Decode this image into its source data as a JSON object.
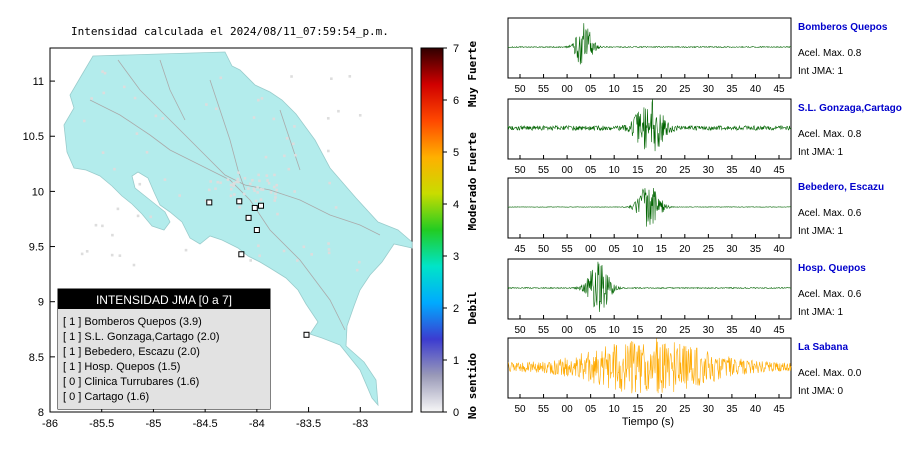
{
  "map": {
    "title": "Intensidad calculada el 2024/08/11_07:59:54_p.m.",
    "x_ticks": [
      "-86",
      "-85.5",
      "-85",
      "-84.5",
      "-84",
      "-83.5",
      "-83"
    ],
    "y_ticks": [
      "11",
      "10.5",
      "10",
      "9.5",
      "9",
      "8.5",
      "8"
    ],
    "xlim": [
      -86,
      -82.5
    ],
    "ylim": [
      8,
      11.3
    ],
    "land_color": "#b3ecec",
    "stations": [
      {
        "lon": -84.46,
        "lat": 9.9
      },
      {
        "lon": -84.17,
        "lat": 9.91
      },
      {
        "lon": -84.02,
        "lat": 9.85
      },
      {
        "lon": -83.96,
        "lat": 9.87
      },
      {
        "lon": -84.08,
        "lat": 9.76
      },
      {
        "lon": -84.0,
        "lat": 9.65
      },
      {
        "lon": -84.15,
        "lat": 9.43
      },
      {
        "lon": -83.52,
        "lat": 8.7
      }
    ]
  },
  "colorbar": {
    "ticks": [
      "0",
      "1",
      "2",
      "3",
      "4",
      "5",
      "6",
      "7"
    ],
    "labels": [
      {
        "text": "No sentido",
        "level": 0.5
      },
      {
        "text": "Debil",
        "level": 2.0
      },
      {
        "text": "Moderado",
        "level": 4.0
      },
      {
        "text": "Fuerte",
        "level": 5.0
      },
      {
        "text": "Muy Fuerte",
        "level": 6.5
      }
    ],
    "colors": [
      "#f7f7f7",
      "#9a9ab8",
      "#3c3cd0",
      "#00aaff",
      "#00e4c8",
      "#22cc22",
      "#c8dc00",
      "#ffb000",
      "#ff4800",
      "#d00000",
      "#300000"
    ]
  },
  "legend": {
    "title": "INTENSIDAD JMA [0 a 7]",
    "items": [
      "[ 1 ]  Bomberos Quepos (3.9)",
      "[ 1 ]  S.L. Gonzaga,Cartago (2.0)",
      "[ 1 ]  Bebedero, Escazu (2.0)",
      "[ 1 ]  Hosp. Quepos (1.5)",
      "[ 0 ]  Clinica Turrubares (1.6)",
      "[ 0 ]  Cartago (1.6)"
    ]
  },
  "chart_data": {
    "type": "line",
    "xlabel": "Tiempo (s)",
    "series": [
      {
        "name": "Bomberos Quepos",
        "accel": "Acel. Max. 0.8",
        "jma": "Int JMA: 1",
        "ticks": [
          "50",
          "55",
          "00",
          "05",
          "10",
          "15",
          "20",
          "25",
          "30",
          "35",
          "40",
          "45"
        ],
        "color": "#006400",
        "peak": 0.9,
        "center": 0.27,
        "width": 0.03,
        "noise": 0.02
      },
      {
        "name": "S.L. Gonzaga,Cartago",
        "accel": "Acel. Max. 0.8",
        "jma": "Int JMA: 1",
        "ticks": [
          "50",
          "55",
          "00",
          "05",
          "10",
          "15",
          "20",
          "25",
          "30",
          "35",
          "40",
          "45"
        ],
        "color": "#006400",
        "peak": 1.0,
        "center": 0.5,
        "width": 0.05,
        "noise": 0.08
      },
      {
        "name": "Bebedero, Escazu",
        "accel": "Acel. Max. 0.6",
        "jma": "Int JMA: 1",
        "ticks": [
          "45",
          "50",
          "55",
          "00",
          "05",
          "10",
          "15",
          "20",
          "25",
          "30",
          "35",
          "40"
        ],
        "color": "#006400",
        "peak": 0.9,
        "center": 0.5,
        "width": 0.04,
        "noise": 0.01
      },
      {
        "name": "Hosp. Quepos",
        "accel": "Acel. Max. 0.6",
        "jma": "Int JMA: 1",
        "ticks": [
          "50",
          "55",
          "00",
          "05",
          "10",
          "15",
          "20",
          "25",
          "30",
          "35",
          "40",
          "45"
        ],
        "color": "#006400",
        "peak": 0.95,
        "center": 0.32,
        "width": 0.04,
        "noise": 0.02
      },
      {
        "name": "La Sabana",
        "accel": "Acel. Max. 0.0",
        "jma": "Int JMA: 0",
        "ticks": [
          "50",
          "55",
          "00",
          "05",
          "10",
          "15",
          "20",
          "25",
          "30",
          "35",
          "40",
          "45"
        ],
        "color": "#ffaa00",
        "peak": 0.9,
        "center": 0.5,
        "width": 0.25,
        "noise": 0.15
      }
    ]
  }
}
